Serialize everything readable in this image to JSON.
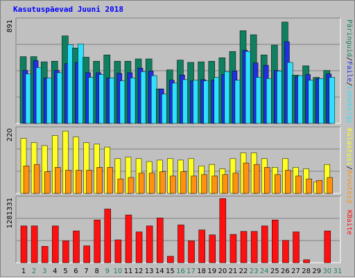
{
  "title": "Kasutuspäevad Juuni 2018",
  "colors": {
    "background": "#c0c0c0",
    "panel": "#c0c0c0",
    "pages": "#0f7f5f",
    "files": "#2030e0",
    "hits": "#30e0ff",
    "visits": "#ffff20",
    "sites": "#ff9010",
    "kbytes": "#ff1010",
    "weekend_label": "#208060",
    "weekday_label": "#000000",
    "title": "#0000ff"
  },
  "chart_data": [
    {
      "type": "bar",
      "panel": "top",
      "y_tick_label": "891",
      "ylim": [
        0,
        891
      ],
      "categories": [
        "1",
        "2",
        "3",
        "4",
        "5",
        "6",
        "7",
        "8",
        "9",
        "10",
        "11",
        "12",
        "13",
        "14",
        "15",
        "16",
        "17",
        "18",
        "19",
        "20",
        "21",
        "22",
        "23",
        "24",
        "25",
        "26",
        "27",
        "28",
        "29",
        "30",
        "31"
      ],
      "series": [
        {
          "name": "Päringuid",
          "color": "#0f7f5f",
          "values": [
            580,
            580,
            535,
            540,
            760,
            655,
            575,
            540,
            595,
            540,
            540,
            560,
            560,
            300,
            465,
            550,
            530,
            535,
            540,
            570,
            625,
            805,
            770,
            595,
            680,
            880,
            420,
            500,
            400,
            460,
            0
          ]
        },
        {
          "name": "Faile",
          "color": "#2030e0",
          "values": [
            460,
            545,
            395,
            460,
            520,
            530,
            440,
            440,
            395,
            435,
            440,
            480,
            455,
            300,
            375,
            420,
            370,
            380,
            375,
            425,
            455,
            635,
            525,
            505,
            460,
            710,
            405,
            425,
            390,
            430,
            0
          ]
        },
        {
          "name": "Lehekülgi",
          "color": "#30e0ff",
          "values": [
            430,
            485,
            395,
            440,
            685,
            690,
            400,
            425,
            395,
            370,
            395,
            450,
            415,
            255,
            350,
            380,
            375,
            370,
            400,
            450,
            375,
            625,
            400,
            390,
            455,
            530,
            415,
            375,
            390,
            400,
            0
          ]
        }
      ],
      "legend_labels": [
        "Päringuid",
        "Faile",
        "Lehekülgi"
      ]
    },
    {
      "type": "bar",
      "panel": "middle",
      "y_tick_label": "220",
      "ylim": [
        0,
        220
      ],
      "categories": [
        "1",
        "2",
        "3",
        "4",
        "5",
        "6",
        "7",
        "8",
        "9",
        "10",
        "11",
        "12",
        "13",
        "14",
        "15",
        "16",
        "17",
        "18",
        "19",
        "20",
        "21",
        "22",
        "23",
        "24",
        "25",
        "26",
        "27",
        "28",
        "29",
        "30",
        "31"
      ],
      "series": [
        {
          "name": "Külastusi",
          "color": "#ffff20",
          "values": [
            190,
            175,
            165,
            200,
            215,
            195,
            175,
            170,
            160,
            120,
            125,
            120,
            110,
            115,
            120,
            115,
            120,
            95,
            100,
            85,
            120,
            140,
            140,
            120,
            90,
            120,
            90,
            85,
            40,
            100,
            0
          ]
        },
        {
          "name": "Arvuteid",
          "color": "#ff9010",
          "values": [
            95,
            100,
            75,
            90,
            80,
            80,
            80,
            90,
            90,
            50,
            55,
            70,
            70,
            75,
            60,
            75,
            60,
            65,
            60,
            65,
            70,
            105,
            100,
            90,
            65,
            80,
            60,
            50,
            45,
            55,
            0
          ]
        }
      ],
      "legend_labels": [
        "Külastusi",
        "Arvuteid"
      ]
    },
    {
      "type": "bar",
      "panel": "bottom",
      "y_tick_label": "1281331",
      "ylim": [
        0,
        1281331
      ],
      "categories": [
        "1",
        "2",
        "3",
        "4",
        "5",
        "6",
        "7",
        "8",
        "9",
        "10",
        "11",
        "12",
        "13",
        "14",
        "15",
        "16",
        "17",
        "18",
        "19",
        "20",
        "21",
        "22",
        "23",
        "24",
        "25",
        "26",
        "27",
        "28",
        "29",
        "30",
        "31"
      ],
      "series": [
        {
          "name": "KBaite",
          "color": "#ff1010",
          "values": [
            740000,
            740000,
            330000,
            740000,
            440000,
            640000,
            340000,
            860000,
            1080000,
            460000,
            960000,
            620000,
            740000,
            900000,
            130000,
            760000,
            440000,
            660000,
            560000,
            1290000,
            570000,
            630000,
            630000,
            740000,
            860000,
            450000,
            620000,
            60000,
            0,
            640000,
            0
          ]
        }
      ],
      "legend_labels": [
        "KBaite"
      ]
    }
  ],
  "x_labels": {
    "weekends": [
      "2",
      "3",
      "9",
      "10",
      "16",
      "17",
      "23",
      "24",
      "30",
      "31"
    ]
  },
  "right_labels": {
    "top": [
      "Päringuid",
      "/",
      "Faile",
      "/",
      "Lehekülgi"
    ],
    "middle": [
      "Külastusi",
      "/",
      "Arvuteid"
    ],
    "bottom": [
      "KBaite"
    ]
  }
}
